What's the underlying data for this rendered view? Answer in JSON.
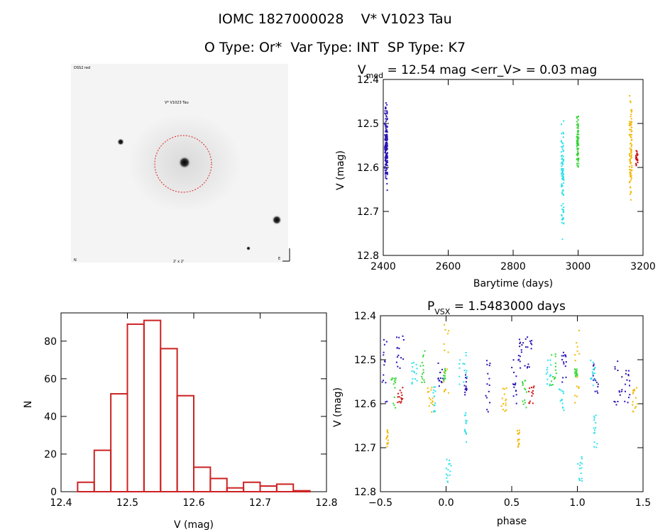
{
  "header": {
    "title_line1": "IOMC 1827000028    V* V1023 Tau",
    "title_line2": "O Type: Or*  Var Type: INT  SP Type: K7"
  },
  "colors": {
    "blue": "#2a14b4",
    "cyan": "#2ee0ea",
    "green": "#33d633",
    "gold": "#f0b800",
    "red": "#cc1010",
    "hist": "#cc2222",
    "circle": "#dd2222"
  },
  "image_panel": {
    "label_top_left": "DSS2 red",
    "label_target": "V* V1023 Tau",
    "label_bottom_left": "N",
    "label_bottom_center": "2' x 2'",
    "label_bottom_right": "E"
  },
  "chart_data": [
    {
      "type": "scatter",
      "id": "lightcurve",
      "title_main": "V",
      "title_sub": "med",
      "title_rest": " = 12.54 mag <err_V> = 0.03 mag",
      "xlabel": "Barytime (days)",
      "ylabel": "V (mag)",
      "xlim": [
        2400,
        3200
      ],
      "ylim": [
        12.8,
        12.4
      ],
      "xticks": [
        "2400",
        "2600",
        "2800",
        "3000",
        "3200"
      ],
      "yticks": [
        "12.4",
        "12.5",
        "12.6",
        "12.7",
        "12.8"
      ],
      "groups": [
        {
          "color": "blue",
          "x": [
            2405,
            2413
          ],
          "ymin": 12.44,
          "ymax": 12.66,
          "n": 160
        },
        {
          "color": "cyan",
          "x": [
            2948,
            2956
          ],
          "ymin": 12.47,
          "ymax": 12.77,
          "n": 90
        },
        {
          "color": "green",
          "x": [
            2996,
            3002
          ],
          "ymin": 12.48,
          "ymax": 12.61,
          "n": 70
        },
        {
          "color": "gold",
          "x": [
            3158,
            3166
          ],
          "ymin": 12.42,
          "ymax": 12.7,
          "n": 90
        },
        {
          "color": "red",
          "x": [
            3178,
            3184
          ],
          "ymin": 12.56,
          "ymax": 12.6,
          "n": 25
        }
      ]
    },
    {
      "type": "bar",
      "id": "histogram",
      "xlabel": "V (mag)",
      "ylabel": "N",
      "xlim": [
        12.4,
        12.8
      ],
      "ylim": [
        0,
        95
      ],
      "xticks": [
        "12.4",
        "12.5",
        "12.6",
        "12.7",
        "12.8"
      ],
      "yticks": [
        "0",
        "20",
        "40",
        "60",
        "80"
      ],
      "bin_width": 0.025,
      "bin_starts": [
        12.425,
        12.45,
        12.475,
        12.5,
        12.525,
        12.55,
        12.575,
        12.6,
        12.625,
        12.65,
        12.675,
        12.7,
        12.725,
        12.75,
        12.775
      ],
      "values": [
        5,
        22,
        52,
        89,
        91,
        76,
        51,
        13,
        7,
        2,
        5,
        3,
        4,
        0.5,
        0
      ]
    },
    {
      "type": "scatter",
      "id": "phased",
      "title_main": "P",
      "title_sub": "VSX",
      "title_rest": " = 1.5483000 days",
      "xlabel": "phase",
      "ylabel": "V (mag)",
      "xlim": [
        -0.5,
        1.5
      ],
      "ylim": [
        12.8,
        12.4
      ],
      "xticks": [
        "−0.5",
        "0.0",
        "0.5",
        "1.0",
        "1.5"
      ],
      "yticks": [
        "12.4",
        "12.5",
        "12.6",
        "12.7",
        "12.8"
      ],
      "clusters": [
        {
          "color": "blue",
          "phase": [
            -0.49,
            -0.45
          ],
          "ymin": 12.44,
          "ymax": 12.6
        },
        {
          "color": "blue",
          "phase": [
            -0.38,
            -0.32
          ],
          "ymin": 12.44,
          "ymax": 12.52
        },
        {
          "color": "blue",
          "phase": [
            -0.06,
            -0.02
          ],
          "ymin": 12.5,
          "ymax": 12.56
        },
        {
          "color": "blue",
          "phase": [
            0.14,
            0.16
          ],
          "ymin": 12.52,
          "ymax": 12.58
        },
        {
          "color": "blue",
          "phase": [
            0.3,
            0.34
          ],
          "ymin": 12.5,
          "ymax": 12.62
        },
        {
          "color": "blue",
          "phase": [
            0.5,
            0.54
          ],
          "ymin": 12.5,
          "ymax": 12.6
        },
        {
          "color": "blue",
          "phase": [
            0.55,
            0.59
          ],
          "ymin": 12.44,
          "ymax": 12.52
        },
        {
          "color": "blue",
          "phase": [
            0.6,
            0.66
          ],
          "ymin": 12.44,
          "ymax": 12.52
        },
        {
          "color": "blue",
          "phase": [
            0.88,
            0.92
          ],
          "ymin": 12.48,
          "ymax": 12.56
        },
        {
          "color": "blue",
          "phase": [
            1.12,
            1.16
          ],
          "ymin": 12.5,
          "ymax": 12.58
        },
        {
          "color": "blue",
          "phase": [
            1.28,
            1.34
          ],
          "ymin": 12.48,
          "ymax": 12.62
        },
        {
          "color": "blue",
          "phase": [
            1.36,
            1.4
          ],
          "ymin": 12.52,
          "ymax": 12.6
        },
        {
          "color": "cyan",
          "phase": [
            -0.26,
            -0.22
          ],
          "ymin": 12.5,
          "ymax": 12.56
        },
        {
          "color": "cyan",
          "phase": [
            -0.1,
            -0.08
          ],
          "ymin": 12.56,
          "ymax": 12.62
        },
        {
          "color": "cyan",
          "phase": [
            0.0,
            0.04
          ],
          "ymin": 12.72,
          "ymax": 12.78
        },
        {
          "color": "cyan",
          "phase": [
            0.1,
            0.16
          ],
          "ymin": 12.48,
          "ymax": 12.56
        },
        {
          "color": "cyan",
          "phase": [
            0.14,
            0.16
          ],
          "ymin": 12.62,
          "ymax": 12.7
        },
        {
          "color": "cyan",
          "phase": [
            0.76,
            0.8
          ],
          "ymin": 12.5,
          "ymax": 12.56
        },
        {
          "color": "cyan",
          "phase": [
            0.86,
            0.9
          ],
          "ymin": 12.56,
          "ymax": 12.62
        },
        {
          "color": "cyan",
          "phase": [
            1.0,
            1.04
          ],
          "ymin": 12.72,
          "ymax": 12.78
        },
        {
          "color": "cyan",
          "phase": [
            1.1,
            1.14
          ],
          "ymin": 12.5,
          "ymax": 12.56
        },
        {
          "color": "cyan",
          "phase": [
            1.12,
            1.15
          ],
          "ymin": 12.62,
          "ymax": 12.7
        },
        {
          "color": "green",
          "phase": [
            -0.42,
            -0.38
          ],
          "ymin": 12.54,
          "ymax": 12.61
        },
        {
          "color": "green",
          "phase": [
            -0.2,
            -0.16
          ],
          "ymin": 12.48,
          "ymax": 12.56
        },
        {
          "color": "green",
          "phase": [
            -0.02,
            0.0
          ],
          "ymin": 12.52,
          "ymax": 12.55
        },
        {
          "color": "green",
          "phase": [
            0.58,
            0.62
          ],
          "ymin": 12.54,
          "ymax": 12.61
        },
        {
          "color": "green",
          "phase": [
            0.8,
            0.84
          ],
          "ymin": 12.48,
          "ymax": 12.56
        },
        {
          "color": "green",
          "phase": [
            0.98,
            1.0
          ],
          "ymin": 12.52,
          "ymax": 12.55
        },
        {
          "color": "gold",
          "phase": [
            -0.46,
            -0.44
          ],
          "ymin": 12.66,
          "ymax": 12.7
        },
        {
          "color": "gold",
          "phase": [
            -0.14,
            -0.1
          ],
          "ymin": 12.56,
          "ymax": 12.62
        },
        {
          "color": "gold",
          "phase": [
            -0.02,
            0.02
          ],
          "ymin": 12.42,
          "ymax": 12.6
        },
        {
          "color": "gold",
          "phase": [
            0.42,
            0.46
          ],
          "ymin": 12.56,
          "ymax": 12.62
        },
        {
          "color": "gold",
          "phase": [
            0.54,
            0.56
          ],
          "ymin": 12.66,
          "ymax": 12.7
        },
        {
          "color": "gold",
          "phase": [
            0.98,
            1.02
          ],
          "ymin": 12.42,
          "ymax": 12.6
        },
        {
          "color": "gold",
          "phase": [
            1.42,
            1.46
          ],
          "ymin": 12.56,
          "ymax": 12.62
        },
        {
          "color": "red",
          "phase": [
            -0.37,
            -0.33
          ],
          "ymin": 12.56,
          "ymax": 12.6
        },
        {
          "color": "red",
          "phase": [
            0.63,
            0.67
          ],
          "ymin": 12.56,
          "ymax": 12.6
        }
      ]
    }
  ]
}
